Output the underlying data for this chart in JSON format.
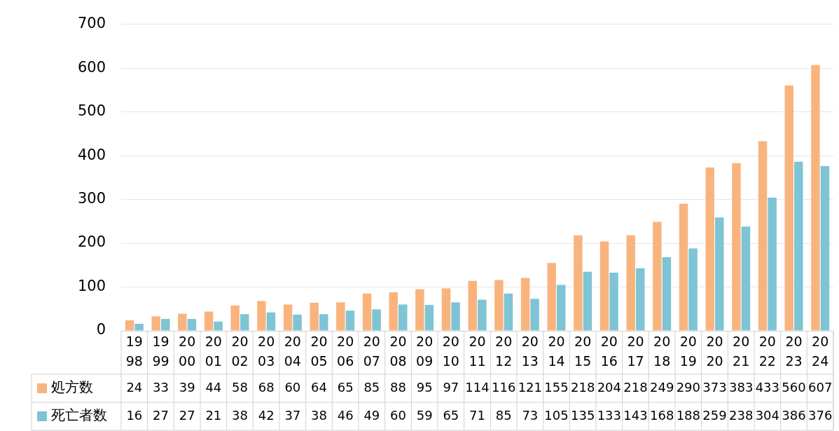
{
  "chart_data": {
    "type": "bar",
    "categories": [
      "1998",
      "1999",
      "2000",
      "2001",
      "2002",
      "2003",
      "2004",
      "2005",
      "2006",
      "2007",
      "2008",
      "2009",
      "2010",
      "2011",
      "2012",
      "2013",
      "2014",
      "2015",
      "2016",
      "2017",
      "2018",
      "2019",
      "2020",
      "2021",
      "2022",
      "2023",
      "2024"
    ],
    "series": [
      {
        "name": "処方数",
        "color": "#f9b47e",
        "values": [
          24,
          33,
          39,
          44,
          58,
          68,
          60,
          64,
          65,
          85,
          88,
          95,
          97,
          114,
          116,
          121,
          155,
          218,
          204,
          218,
          249,
          290,
          373,
          383,
          433,
          560,
          607
        ]
      },
      {
        "name": "死亡者数",
        "color": "#7ec4d4",
        "values": [
          16,
          27,
          27,
          21,
          38,
          42,
          37,
          38,
          46,
          49,
          60,
          59,
          65,
          71,
          85,
          73,
          105,
          135,
          133,
          143,
          168,
          188,
          259,
          238,
          304,
          386,
          376
        ]
      }
    ],
    "ylim": [
      0,
      700
    ],
    "yticks": [
      0,
      100,
      200,
      300,
      400,
      500,
      600,
      700
    ],
    "grid": "y",
    "legend": "bottom",
    "data_labels": true
  }
}
